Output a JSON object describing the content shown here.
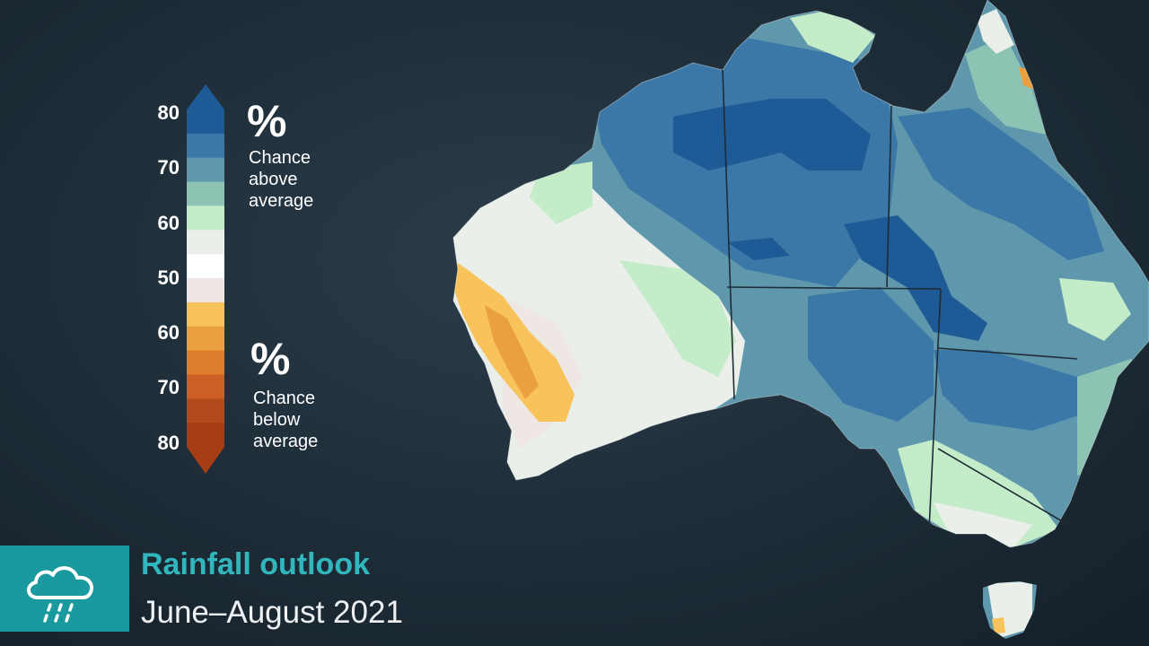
{
  "title": "Rainfall outlook",
  "subtitle": "June–August 2021",
  "legend": {
    "ticks": [
      "80",
      "70",
      "60",
      "50",
      "60",
      "70",
      "80"
    ],
    "percent_symbol": "%",
    "above_label": [
      "Chance",
      "above",
      "average"
    ],
    "below_label": [
      "Chance",
      "below",
      "average"
    ],
    "colors": [
      "#1d5a96",
      "#3b77a7",
      "#5f98ad",
      "#8cc3b3",
      "#c4ecc9",
      "#eaefe9",
      "#ffffff",
      "#eee7e4",
      "#f8c35a",
      "#eba040",
      "#dd7c2b",
      "#cc5f24",
      "#b24a1c",
      "#a63d14"
    ]
  },
  "icons": {
    "logo": "rain-cloud-icon"
  }
}
